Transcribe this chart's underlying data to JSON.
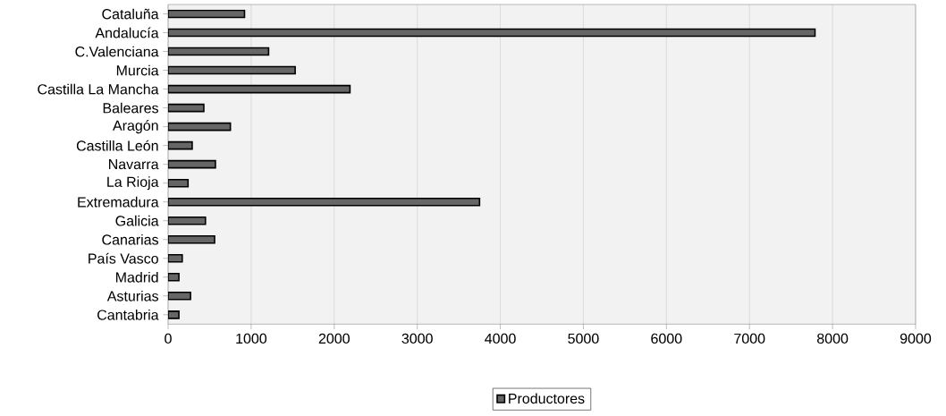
{
  "chart_data": {
    "type": "bar",
    "orientation": "horizontal",
    "categories": [
      "Cataluña",
      "Andalucía",
      "C.Valenciana",
      "Murcia",
      "Castilla La Mancha",
      "Baleares",
      "Aragón",
      "Castilla León",
      "Navarra",
      "La Rioja",
      "Extremadura",
      "Galicia",
      "Canarias",
      "País Vasco",
      "Madrid",
      "Asturias",
      "Cantabria"
    ],
    "series": [
      {
        "name": "Productores",
        "color": "#666666",
        "values": [
          920,
          7790,
          1210,
          1530,
          2190,
          430,
          750,
          290,
          570,
          240,
          3750,
          450,
          560,
          170,
          130,
          270,
          130
        ]
      }
    ],
    "xlim": [
      0,
      9000
    ],
    "xticks": [
      0,
      1000,
      2000,
      3000,
      4000,
      5000,
      6000,
      7000,
      8000,
      9000
    ],
    "grid": "x",
    "legend": "bottom"
  }
}
